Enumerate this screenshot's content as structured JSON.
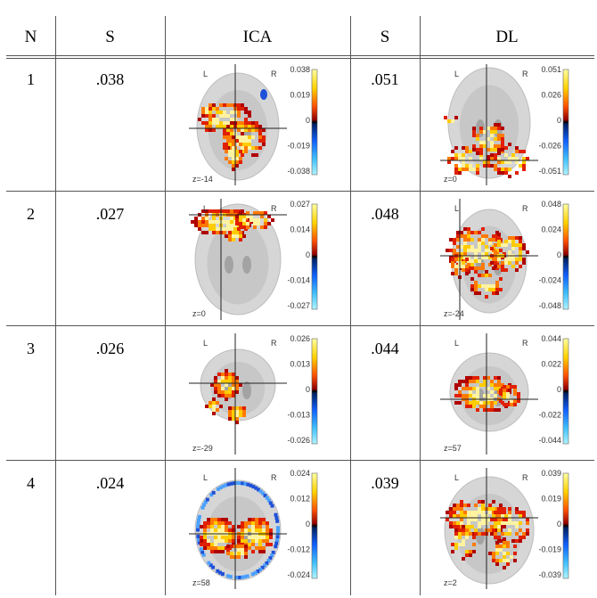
{
  "table": {
    "headers": {
      "n": "N",
      "s_ica": "S",
      "ica": "ICA",
      "s_dl": "S",
      "dl": "DL"
    },
    "rows": [
      {
        "n": "1",
        "s_ica": ".038",
        "s_dl": ".051",
        "ica": {
          "left": "L",
          "right": "R",
          "z": "z=-14",
          "ticks": [
            "0.038",
            "0.019",
            "0",
            "-0.019",
            "-0.038"
          ]
        },
        "dl": {
          "left": "L",
          "right": "R",
          "z": "z=0",
          "ticks": [
            "0.051",
            "0.026",
            "0",
            "-0.026",
            "-0.051"
          ]
        }
      },
      {
        "n": "2",
        "s_ica": ".027",
        "s_dl": ".048",
        "ica": {
          "left": "L",
          "right": "R",
          "z": "z=0",
          "ticks": [
            "0.027",
            "0.014",
            "0",
            "-0.014",
            "-0.027"
          ]
        },
        "dl": {
          "left": "L",
          "right": "R",
          "z": "z=-24",
          "ticks": [
            "0.048",
            "0.024",
            "0",
            "-0.024",
            "-0.048"
          ]
        }
      },
      {
        "n": "3",
        "s_ica": ".026",
        "s_dl": ".044",
        "ica": {
          "left": "L",
          "right": "R",
          "z": "z=-29",
          "ticks": [
            "0.026",
            "0.013",
            "0",
            "-0.013",
            "-0.026"
          ]
        },
        "dl": {
          "left": "L",
          "right": "R",
          "z": "z=57",
          "ticks": [
            "0.044",
            "0.022",
            "0",
            "-0.022",
            "-0.044"
          ]
        }
      },
      {
        "n": "4",
        "s_ica": ".024",
        "s_dl": ".039",
        "ica": {
          "left": "L",
          "right": "R",
          "z": "z=58",
          "ticks": [
            "0.024",
            "0.012",
            "0",
            "-0.012",
            "-0.024"
          ]
        },
        "dl": {
          "left": "L",
          "right": "R",
          "z": "z=2",
          "ticks": [
            "0.039",
            "0.019",
            "0",
            "-0.019",
            "-0.039"
          ]
        }
      }
    ]
  }
}
